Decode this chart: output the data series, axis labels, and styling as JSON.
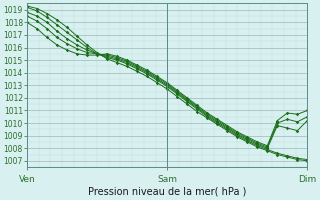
{
  "title": "Pression niveau de la mer( hPa )",
  "background_color": "#d8f0f0",
  "grid_color_minor": "#c0d8d8",
  "grid_color_major": "#9ababa",
  "line_color": "#1a6e1a",
  "ylim": [
    1006.5,
    1019.5
  ],
  "yticks": [
    1007,
    1008,
    1009,
    1010,
    1011,
    1012,
    1013,
    1014,
    1015,
    1016,
    1017,
    1018,
    1019
  ],
  "xtick_labels": [
    "Ven",
    "Sam",
    "Dim"
  ],
  "xtick_positions": [
    0.0,
    1.0,
    2.0
  ],
  "lines": [
    [
      1019.3,
      1019.1,
      1018.7,
      1018.2,
      1017.6,
      1016.9,
      1016.2,
      1015.6,
      1015.1,
      1014.8,
      1014.5,
      1014.1,
      1013.7,
      1013.2,
      1012.7,
      1012.1,
      1011.5,
      1010.9,
      1010.4,
      1009.9,
      1009.4,
      1008.9,
      1008.5,
      1008.1,
      1007.8,
      1007.5,
      1007.3,
      1007.1,
      1007.0
    ],
    [
      1019.2,
      1018.9,
      1018.4,
      1017.8,
      1017.2,
      1016.6,
      1016.0,
      1015.5,
      1015.2,
      1015.0,
      1014.7,
      1014.3,
      1013.9,
      1013.4,
      1012.9,
      1012.3,
      1011.7,
      1011.1,
      1010.5,
      1010.0,
      1009.5,
      1009.0,
      1008.6,
      1008.2,
      1007.9,
      1007.6,
      1007.4,
      1007.2,
      1007.1
    ],
    [
      1018.8,
      1018.5,
      1018.0,
      1017.3,
      1016.7,
      1016.2,
      1015.8,
      1015.5,
      1015.3,
      1015.1,
      1014.8,
      1014.4,
      1014.0,
      1013.5,
      1013.0,
      1012.4,
      1011.8,
      1011.2,
      1010.6,
      1010.1,
      1009.6,
      1009.1,
      1008.7,
      1008.3,
      1008.0,
      1009.8,
      1009.6,
      1009.4,
      1010.2
    ],
    [
      1018.5,
      1018.1,
      1017.5,
      1016.8,
      1016.3,
      1015.9,
      1015.6,
      1015.5,
      1015.4,
      1015.2,
      1014.9,
      1014.5,
      1014.1,
      1013.6,
      1013.1,
      1012.5,
      1011.9,
      1011.3,
      1010.7,
      1010.2,
      1009.7,
      1009.2,
      1008.8,
      1008.4,
      1008.1,
      1010.0,
      1010.3,
      1010.1,
      1010.5
    ],
    [
      1018.0,
      1017.5,
      1016.8,
      1016.2,
      1015.8,
      1015.5,
      1015.4,
      1015.4,
      1015.5,
      1015.3,
      1015.0,
      1014.6,
      1014.2,
      1013.7,
      1013.2,
      1012.6,
      1012.0,
      1011.4,
      1010.8,
      1010.3,
      1009.8,
      1009.3,
      1008.9,
      1008.5,
      1008.2,
      1010.2,
      1010.8,
      1010.7,
      1011.0
    ]
  ]
}
